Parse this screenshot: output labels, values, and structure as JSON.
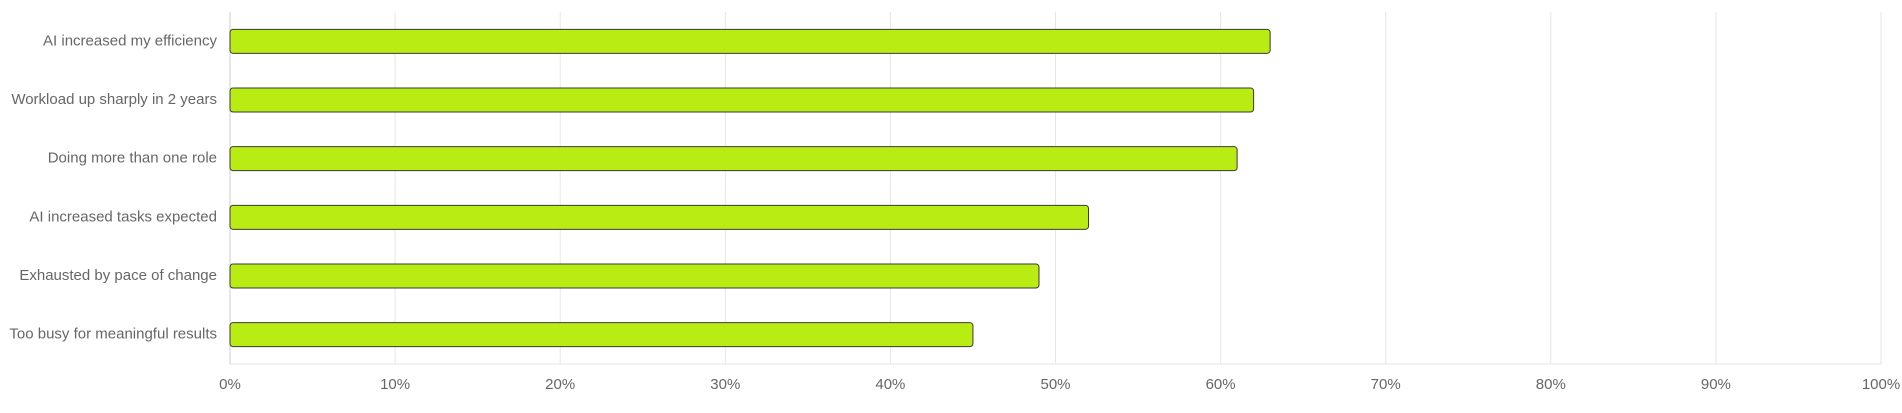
{
  "chart_data": {
    "type": "hbar",
    "categories": [
      "AI increased my efficiency",
      "Workload up sharply in 2 years",
      "Doing more than one role",
      "AI increased tasks expected",
      "Exhausted by pace of change",
      "Too busy for meaningful results"
    ],
    "values": [
      63,
      62,
      61,
      52,
      49,
      45
    ],
    "color": "#b8ec12",
    "xlim": [
      0,
      100
    ],
    "xticks": [
      {
        "value": 0,
        "label": "0%"
      },
      {
        "value": 10,
        "label": "10%"
      },
      {
        "value": 20,
        "label": "20%"
      },
      {
        "value": 30,
        "label": "30%"
      },
      {
        "value": 40,
        "label": "40%"
      },
      {
        "value": 50,
        "label": "50%"
      },
      {
        "value": 60,
        "label": "60%"
      },
      {
        "value": 70,
        "label": "70%"
      },
      {
        "value": 80,
        "label": "80%"
      },
      {
        "value": 90,
        "label": "90%"
      },
      {
        "value": 100,
        "label": "100%"
      }
    ],
    "grid": true
  }
}
